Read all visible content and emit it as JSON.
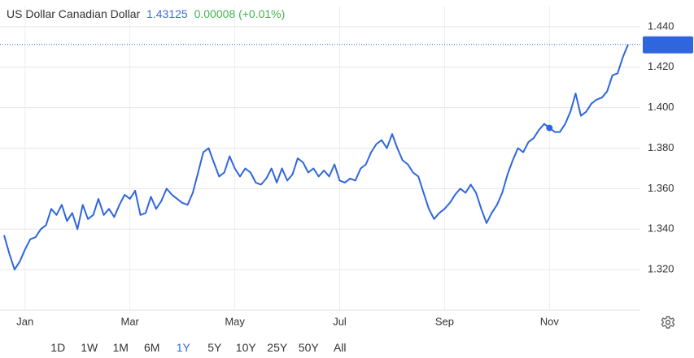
{
  "chart_data": {
    "type": "line",
    "title": "US Dollar Canadian Dollar",
    "last_price": 1.43125,
    "change": "0.00008 (+0.01%)",
    "color": "#2f66dd",
    "categories": [
      null,
      null,
      null,
      null,
      "Jan",
      null,
      null,
      null,
      null,
      null,
      null,
      null,
      null,
      null,
      null,
      null,
      null,
      null,
      null,
      null,
      null,
      null,
      null,
      null,
      "Mar",
      null,
      null,
      null,
      null,
      null,
      null,
      null,
      null,
      null,
      null,
      null,
      null,
      null,
      null,
      null,
      null,
      null,
      null,
      null,
      "May",
      null,
      null,
      null,
      null,
      null,
      null,
      null,
      null,
      null,
      null,
      null,
      null,
      null,
      null,
      null,
      null,
      null,
      null,
      null,
      "Jul",
      null,
      null,
      null,
      null,
      null,
      null,
      null,
      null,
      null,
      null,
      null,
      null,
      null,
      null,
      null,
      null,
      null,
      null,
      null,
      "Sep",
      null,
      null,
      null,
      null,
      null,
      null,
      null,
      null,
      null,
      null,
      null,
      null,
      null,
      null,
      null,
      null,
      null,
      null,
      null,
      "Nov",
      null,
      null,
      null,
      null,
      null,
      null,
      null,
      null,
      null,
      null,
      null,
      null,
      null,
      null,
      null
    ],
    "values": [
      1.337,
      1.328,
      1.32,
      1.324,
      1.33,
      1.335,
      1.336,
      1.34,
      1.342,
      1.35,
      1.347,
      1.352,
      1.344,
      1.348,
      1.34,
      1.352,
      1.345,
      1.347,
      1.355,
      1.347,
      1.35,
      1.346,
      1.352,
      1.357,
      1.355,
      1.359,
      1.347,
      1.348,
      1.356,
      1.35,
      1.354,
      1.36,
      1.357,
      1.355,
      1.353,
      1.352,
      1.358,
      1.368,
      1.378,
      1.38,
      1.373,
      1.366,
      1.368,
      1.376,
      1.37,
      1.366,
      1.37,
      1.368,
      1.363,
      1.362,
      1.365,
      1.37,
      1.363,
      1.37,
      1.364,
      1.367,
      1.375,
      1.373,
      1.368,
      1.37,
      1.366,
      1.369,
      1.366,
      1.372,
      1.364,
      1.363,
      1.365,
      1.364,
      1.37,
      1.372,
      1.378,
      1.382,
      1.384,
      1.38,
      1.387,
      1.38,
      1.374,
      1.372,
      1.368,
      1.366,
      1.358,
      1.35,
      1.345,
      1.348,
      1.35,
      1.353,
      1.357,
      1.36,
      1.358,
      1.362,
      1.358,
      1.35,
      1.343,
      1.348,
      1.352,
      1.358,
      1.367,
      1.374,
      1.38,
      1.378,
      1.383,
      1.385,
      1.389,
      1.392,
      1.39,
      1.388,
      1.388,
      1.392,
      1.398,
      1.407,
      1.396,
      1.398,
      1.402,
      1.404,
      1.405,
      1.408,
      1.416,
      1.417,
      1.425,
      1.43125
    ],
    "marker_index": 104,
    "ylim": [
      1.3,
      1.45
    ],
    "yticks": [
      {
        "value": 1.32,
        "label": "1.320"
      },
      {
        "value": 1.34,
        "label": "1.340"
      },
      {
        "value": 1.36,
        "label": "1.360"
      },
      {
        "value": 1.38,
        "label": "1.380"
      },
      {
        "value": 1.4,
        "label": "1.400"
      },
      {
        "value": 1.42,
        "label": "1.420"
      },
      {
        "value": 1.44,
        "label": "1.440"
      }
    ],
    "grid": true,
    "ranges": [
      "1D",
      "1W",
      "1M",
      "6M",
      "1Y",
      "5Y",
      "10Y",
      "25Y",
      "50Y",
      "All"
    ],
    "selected_range": 4
  }
}
